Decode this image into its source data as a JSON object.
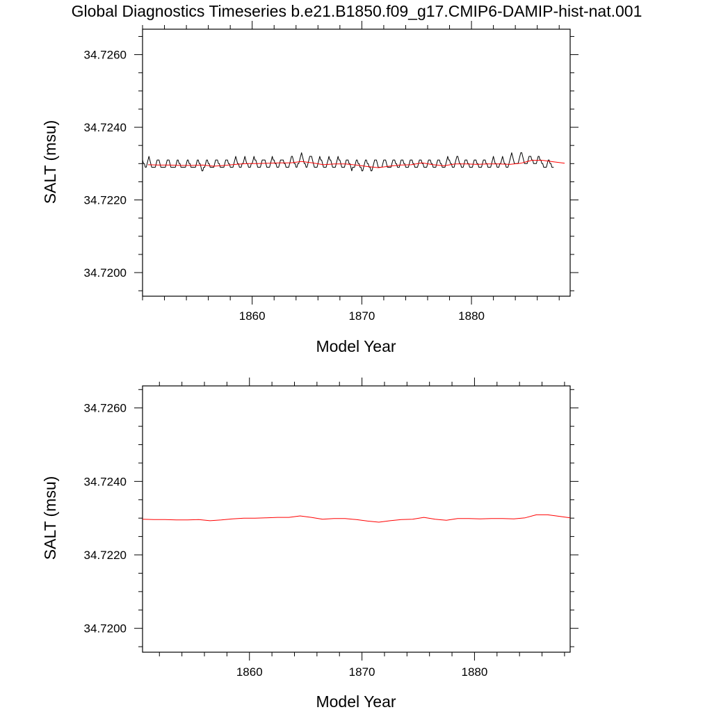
{
  "figure": {
    "title": "Global Diagnostics Timeseries b.e21.B1850.f09_g17.CMIP6-DAMIP-hist-nat.001"
  },
  "colors": {
    "monthly": "#000000",
    "annual": "#ff0000"
  },
  "chart_data": [
    {
      "type": "line",
      "xlabel": "Model Year",
      "ylabel": "SALT (msu)",
      "xlim": [
        1850.0,
        1889.0
      ],
      "ylim": [
        34.71935,
        34.7267
      ],
      "xticks": [
        1860,
        1870,
        1880
      ],
      "xtick_labels": [
        "1860",
        "1870",
        "1880"
      ],
      "yticks": [
        34.72,
        34.722,
        34.724,
        34.726
      ],
      "ytick_labels": [
        "34.7200",
        "34.7220",
        "34.7240",
        "34.7260"
      ],
      "grid": false,
      "legend": "none",
      "series": [
        {
          "kind": "monthly",
          "color": "#000000",
          "x_start": 1850.0,
          "x_step": 0.0833333,
          "values": [
            34.7231,
            34.723,
            34.723,
            34.7229,
            34.7229,
            34.723,
            34.7231,
            34.7232,
            34.7231,
            34.723,
            34.7229,
            34.7229,
            34.7229,
            34.7229,
            34.7229,
            34.723,
            34.7231,
            34.7231,
            34.7231,
            34.723,
            34.7229,
            34.7229,
            34.7229,
            34.7229,
            34.7229,
            34.7229,
            34.723,
            34.7231,
            34.7231,
            34.7231,
            34.723,
            34.7229,
            34.7229,
            34.7229,
            34.7229,
            34.7229,
            34.7229,
            34.723,
            34.7231,
            34.7231,
            34.723,
            34.723,
            34.7229,
            34.7229,
            34.7229,
            34.7229,
            34.7229,
            34.7229,
            34.723,
            34.7231,
            34.7231,
            34.723,
            34.723,
            34.7229,
            34.7229,
            34.7229,
            34.7229,
            34.7229,
            34.7229,
            34.723,
            34.7231,
            34.7231,
            34.723,
            34.723,
            34.7229,
            34.7228,
            34.7228,
            34.7229,
            34.7229,
            34.723,
            34.7231,
            34.7231,
            34.723,
            34.723,
            34.7229,
            34.7229,
            34.7229,
            34.7229,
            34.7229,
            34.723,
            34.7231,
            34.7231,
            34.7231,
            34.723,
            34.723,
            34.7229,
            34.7229,
            34.7229,
            34.7229,
            34.7229,
            34.723,
            34.7231,
            34.7231,
            34.7231,
            34.723,
            34.723,
            34.7229,
            34.7229,
            34.7229,
            34.7229,
            34.723,
            34.7231,
            34.7232,
            34.7231,
            34.723,
            34.723,
            34.7229,
            34.7229,
            34.7229,
            34.723,
            34.723,
            34.7231,
            34.7232,
            34.7231,
            34.723,
            34.723,
            34.7229,
            34.7229,
            34.7229,
            34.723,
            34.723,
            34.7231,
            34.7232,
            34.7231,
            34.7231,
            34.723,
            34.7229,
            34.7229,
            34.7229,
            34.7229,
            34.723,
            34.7231,
            34.7231,
            34.7231,
            34.7231,
            34.723,
            34.7229,
            34.7229,
            34.7229,
            34.7229,
            34.723,
            34.7231,
            34.7232,
            34.7231,
            34.7231,
            34.723,
            34.723,
            34.7229,
            34.7229,
            34.7229,
            34.723,
            34.7231,
            34.7231,
            34.7231,
            34.7231,
            34.723,
            34.723,
            34.7229,
            34.7229,
            34.7229,
            34.7229,
            34.723,
            34.7231,
            34.7232,
            34.7232,
            34.7231,
            34.723,
            34.723,
            34.7229,
            34.7229,
            34.723,
            34.723,
            34.7231,
            34.7232,
            34.7233,
            34.7232,
            34.7231,
            34.723,
            34.723,
            34.7229,
            34.7229,
            34.723,
            34.7231,
            34.7232,
            34.7232,
            34.7232,
            34.7231,
            34.723,
            34.7229,
            34.7229,
            34.7229,
            34.7229,
            34.723,
            34.7231,
            34.7232,
            34.7231,
            34.7231,
            34.723,
            34.7229,
            34.7229,
            34.7229,
            34.7229,
            34.723,
            34.7231,
            34.7232,
            34.7231,
            34.7231,
            34.723,
            34.7229,
            34.7229,
            34.7229,
            34.7229,
            34.723,
            34.7231,
            34.7232,
            34.7231,
            34.7231,
            34.723,
            34.7229,
            34.7229,
            34.7229,
            34.7229,
            34.723,
            34.7231,
            34.7231,
            34.7231,
            34.723,
            34.723,
            34.7229,
            34.7228,
            34.7229,
            34.7229,
            34.7229,
            34.723,
            34.7231,
            34.7231,
            34.723,
            34.723,
            34.7229,
            34.7229,
            34.7228,
            34.7228,
            34.7229,
            34.723,
            34.7231,
            34.7231,
            34.723,
            34.723,
            34.7229,
            34.7229,
            34.7228,
            34.7228,
            34.7229,
            34.723,
            34.7231,
            34.7231,
            34.7231,
            34.723,
            34.7229,
            34.7229,
            34.7229,
            34.7229,
            34.7229,
            34.723,
            34.7231,
            34.7231,
            34.7231,
            34.723,
            34.7229,
            34.7229,
            34.7229,
            34.7229,
            34.7229,
            34.723,
            34.7231,
            34.7231,
            34.7231,
            34.723,
            34.723,
            34.7229,
            34.7229,
            34.7229,
            34.723,
            34.7231,
            34.7231,
            34.7231,
            34.723,
            34.723,
            34.7229,
            34.7229,
            34.7229,
            34.7229,
            34.723,
            34.7231,
            34.7231,
            34.7231,
            34.723,
            34.723,
            34.7229,
            34.7229,
            34.7229,
            34.7229,
            34.723,
            34.7231,
            34.7231,
            34.7231,
            34.723,
            34.723,
            34.7229,
            34.7229,
            34.7229,
            34.7229,
            34.723,
            34.7231,
            34.7231,
            34.7231,
            34.723,
            34.723,
            34.7229,
            34.7229,
            34.7229,
            34.7229,
            34.723,
            34.7231,
            34.7231,
            34.7231,
            34.723,
            34.723,
            34.7229,
            34.7229,
            34.7229,
            34.7229,
            34.723,
            34.7231,
            34.7232,
            34.7231,
            34.7231,
            34.723,
            34.723,
            34.7229,
            34.7229,
            34.7229,
            34.723,
            34.7231,
            34.7232,
            34.7232,
            34.7231,
            34.723,
            34.723,
            34.7229,
            34.7229,
            34.7229,
            34.723,
            34.7231,
            34.7231,
            34.7231,
            34.723,
            34.723,
            34.7229,
            34.7229,
            34.7229,
            34.7229,
            34.723,
            34.7231,
            34.7231,
            34.7231,
            34.723,
            34.723,
            34.7229,
            34.7229,
            34.7229,
            34.7229,
            34.723,
            34.7231,
            34.7231,
            34.7231,
            34.723,
            34.723,
            34.7229,
            34.7229,
            34.7229,
            34.7229,
            34.723,
            34.7231,
            34.7232,
            34.7231,
            34.723,
            34.723,
            34.7229,
            34.7229,
            34.7229,
            34.723,
            34.723,
            34.7231,
            34.7232,
            34.7231,
            34.723,
            34.723,
            34.7229,
            34.7229,
            34.7229,
            34.723,
            34.7231,
            34.7232,
            34.7233,
            34.7232,
            34.7231,
            34.723,
            34.723,
            34.723,
            34.723,
            34.723,
            34.7231,
            34.7232,
            34.7233,
            34.7233,
            34.7232,
            34.7231,
            34.723,
            34.723,
            34.723,
            34.723,
            34.7231,
            34.7232,
            34.7232,
            34.7232,
            34.7231,
            34.7231,
            34.723,
            34.723,
            34.723,
            34.723,
            34.7231,
            34.7232,
            34.7232,
            34.7231,
            34.7231,
            34.723,
            34.723,
            34.7229,
            34.7229,
            34.7229,
            34.7229,
            34.723,
            34.7231,
            34.7231,
            34.723,
            34.723,
            34.7229,
            34.7229,
            34.7229
          ]
        },
        {
          "kind": "annual",
          "color": "#ff0000",
          "x": [
            1850.5,
            1851.5,
            1852.5,
            1853.5,
            1854.5,
            1855.5,
            1856.5,
            1857.5,
            1858.5,
            1859.5,
            1860.5,
            1861.5,
            1862.5,
            1863.5,
            1864.5,
            1865.5,
            1866.5,
            1867.5,
            1868.5,
            1869.5,
            1870.5,
            1871.5,
            1872.5,
            1873.5,
            1874.5,
            1875.5,
            1876.5,
            1877.5,
            1878.5,
            1879.5,
            1880.5,
            1881.5,
            1882.5,
            1883.5,
            1884.5,
            1885.5,
            1886.5,
            1887.5,
            1888.5
          ],
          "values": [
            34.72297,
            34.72296,
            34.72296,
            34.72295,
            34.72295,
            34.72296,
            34.72293,
            34.72295,
            34.72298,
            34.723,
            34.723,
            34.72301,
            34.72302,
            34.72302,
            34.72306,
            34.72302,
            34.72297,
            34.72299,
            34.72299,
            34.72296,
            34.72292,
            34.72289,
            34.72293,
            34.72296,
            34.72297,
            34.72302,
            34.72297,
            34.72294,
            34.72299,
            34.72299,
            34.72298,
            34.72299,
            34.72299,
            34.72298,
            34.72301,
            34.72309,
            34.72309,
            34.72305,
            34.72301
          ]
        }
      ]
    },
    {
      "type": "line",
      "xlabel": "Model Year",
      "ylabel": "SALT (msu)",
      "xlim": [
        1850.5,
        1888.5
      ],
      "ylim": [
        34.71935,
        34.7266
      ],
      "xticks": [
        1860,
        1870,
        1880
      ],
      "xtick_labels": [
        "1860",
        "1870",
        "1880"
      ],
      "yticks": [
        34.72,
        34.722,
        34.724,
        34.726
      ],
      "ytick_labels": [
        "34.7200",
        "34.7220",
        "34.7240",
        "34.7260"
      ],
      "grid": false,
      "legend": "none",
      "series": [
        {
          "kind": "annual",
          "color": "#ff0000",
          "x": [
            1850.5,
            1851.5,
            1852.5,
            1853.5,
            1854.5,
            1855.5,
            1856.5,
            1857.5,
            1858.5,
            1859.5,
            1860.5,
            1861.5,
            1862.5,
            1863.5,
            1864.5,
            1865.5,
            1866.5,
            1867.5,
            1868.5,
            1869.5,
            1870.5,
            1871.5,
            1872.5,
            1873.5,
            1874.5,
            1875.5,
            1876.5,
            1877.5,
            1878.5,
            1879.5,
            1880.5,
            1881.5,
            1882.5,
            1883.5,
            1884.5,
            1885.5,
            1886.5,
            1887.5,
            1888.5
          ],
          "values": [
            34.72297,
            34.72296,
            34.72296,
            34.72295,
            34.72295,
            34.72296,
            34.72293,
            34.72295,
            34.72298,
            34.723,
            34.723,
            34.72301,
            34.72302,
            34.72302,
            34.72306,
            34.72302,
            34.72297,
            34.72299,
            34.72299,
            34.72296,
            34.72292,
            34.72289,
            34.72293,
            34.72296,
            34.72297,
            34.72302,
            34.72297,
            34.72294,
            34.72299,
            34.72299,
            34.72298,
            34.72299,
            34.72299,
            34.72298,
            34.72301,
            34.72309,
            34.72309,
            34.72305,
            34.72301
          ]
        }
      ]
    }
  ]
}
